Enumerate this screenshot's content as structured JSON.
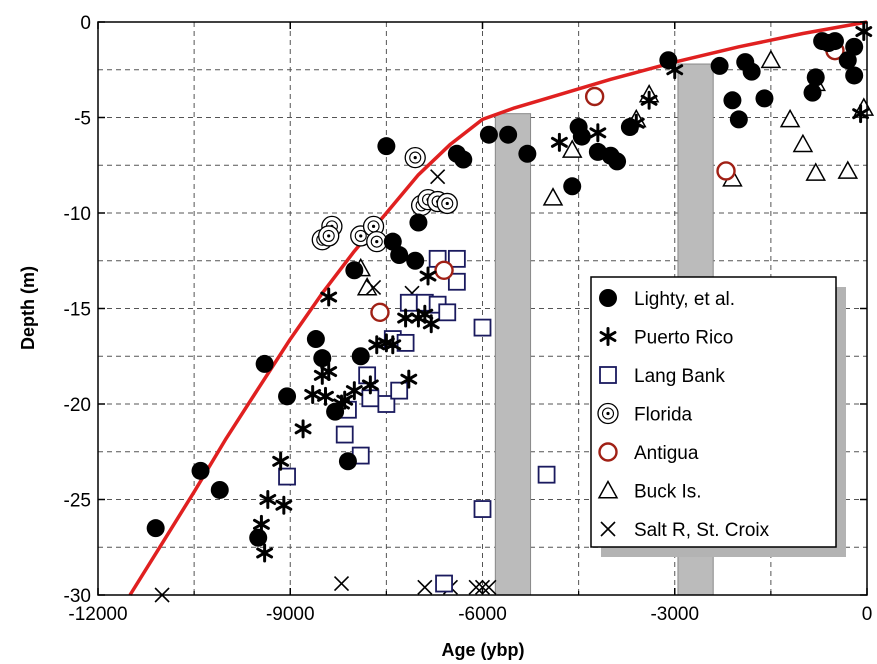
{
  "chart_data": {
    "type": "scatter",
    "title": "",
    "xlabel": "Age (ybp)",
    "ylabel": "Depth (m)",
    "xlim": [
      -12000,
      0
    ],
    "ylim": [
      -30,
      0
    ],
    "xticks": [
      -12000,
      -9000,
      -6000,
      -3000,
      0
    ],
    "yticks": [
      0,
      -5,
      -10,
      -15,
      -20,
      -25,
      -30
    ],
    "grid": true,
    "legend_position": "center-right",
    "colors": {
      "curve": "#e02020",
      "bar_fill": "#bbbbbb",
      "square_stroke": "#1a1a5e",
      "antigua_stroke": "#a02015"
    },
    "legend": [
      {
        "label": "Lighty, et al.",
        "marker": "filled-circle"
      },
      {
        "label": "Puerto Rico",
        "marker": "asterisk"
      },
      {
        "label": "Lang Bank",
        "marker": "open-square"
      },
      {
        "label": "Florida",
        "marker": "dotted-circle"
      },
      {
        "label": "Antigua",
        "marker": "open-circle"
      },
      {
        "label": "Buck Is.",
        "marker": "triangle"
      },
      {
        "label": "Salt R, St. Croix",
        "marker": "x"
      }
    ],
    "bands": [
      {
        "x0": -5800,
        "x1": -5250,
        "y0": -30,
        "y1": -4.8
      },
      {
        "x0": -2950,
        "x1": -2400,
        "y0": -30,
        "y1": -2.2
      }
    ],
    "curve": {
      "x": [
        -11500,
        -11000,
        -10500,
        -10000,
        -9500,
        -9000,
        -8500,
        -8000,
        -7500,
        -7000,
        -6500,
        -6000,
        -5500,
        -5000,
        -4000,
        -3000,
        -2000,
        -1000,
        0
      ],
      "y": [
        -30,
        -27.3,
        -24.6,
        -21.8,
        -19.2,
        -16.6,
        -14.2,
        -12.0,
        -10.0,
        -8.0,
        -6.4,
        -5.1,
        -4.5,
        -4.0,
        -3.0,
        -2.1,
        -1.3,
        -0.6,
        0
      ]
    },
    "series": [
      {
        "name": "Lighty, et al.",
        "marker": "filled-circle",
        "points": [
          [
            -11100,
            -26.5
          ],
          [
            -10400,
            -23.5
          ],
          [
            -10100,
            -24.5
          ],
          [
            -9500,
            -27.0
          ],
          [
            -9400,
            -17.9
          ],
          [
            -9050,
            -19.6
          ],
          [
            -8600,
            -16.6
          ],
          [
            -8500,
            -17.6
          ],
          [
            -8300,
            -20.4
          ],
          [
            -8100,
            -23.0
          ],
          [
            -8000,
            -13.0
          ],
          [
            -7900,
            -17.5
          ],
          [
            -7500,
            -6.5
          ],
          [
            -7400,
            -11.5
          ],
          [
            -7300,
            -12.2
          ],
          [
            -7050,
            -12.5
          ],
          [
            -7000,
            -10.5
          ],
          [
            -6400,
            -6.9
          ],
          [
            -6300,
            -7.2
          ],
          [
            -5900,
            -5.9
          ],
          [
            -5600,
            -5.9
          ],
          [
            -5300,
            -6.9
          ],
          [
            -4600,
            -8.6
          ],
          [
            -4500,
            -5.5
          ],
          [
            -4450,
            -6.0
          ],
          [
            -4200,
            -6.8
          ],
          [
            -4000,
            -7.0
          ],
          [
            -3900,
            -7.3
          ],
          [
            -3700,
            -5.5
          ],
          [
            -3100,
            -2.0
          ],
          [
            -2300,
            -2.3
          ],
          [
            -2100,
            -4.1
          ],
          [
            -2000,
            -5.1
          ],
          [
            -1900,
            -2.1
          ],
          [
            -1800,
            -2.6
          ],
          [
            -1600,
            -4.0
          ],
          [
            -850,
            -3.7
          ],
          [
            -800,
            -2.9
          ],
          [
            -700,
            -1.0
          ],
          [
            -600,
            -1.1
          ],
          [
            -500,
            -1.0
          ],
          [
            -300,
            -2.0
          ],
          [
            -200,
            -1.3
          ],
          [
            -200,
            -2.8
          ]
        ]
      },
      {
        "name": "Puerto Rico",
        "marker": "asterisk",
        "points": [
          [
            -9400,
            -27.8
          ],
          [
            -9450,
            -26.3
          ],
          [
            -9350,
            -25.0
          ],
          [
            -9100,
            -25.3
          ],
          [
            -9150,
            -23.0
          ],
          [
            -8800,
            -21.3
          ],
          [
            -8650,
            -19.5
          ],
          [
            -8500,
            -18.5
          ],
          [
            -8400,
            -18.3
          ],
          [
            -8450,
            -19.6
          ],
          [
            -8400,
            -14.4
          ],
          [
            -8200,
            -20.0
          ],
          [
            -8150,
            -19.8
          ],
          [
            -8000,
            -19.3
          ],
          [
            -7750,
            -19.0
          ],
          [
            -7650,
            -16.9
          ],
          [
            -7500,
            -16.8
          ],
          [
            -7400,
            -16.9
          ],
          [
            -7200,
            -15.5
          ],
          [
            -7000,
            -15.5
          ],
          [
            -6900,
            -15.3
          ],
          [
            -7150,
            -18.7
          ],
          [
            -6850,
            -13.3
          ],
          [
            -6800,
            -15.8
          ],
          [
            -4800,
            -6.3
          ],
          [
            -4200,
            -5.8
          ],
          [
            -3600,
            -5.3
          ],
          [
            -3400,
            -4.1
          ],
          [
            -3000,
            -2.5
          ],
          [
            -100,
            -4.8
          ],
          [
            -50,
            -0.5
          ]
        ]
      },
      {
        "name": "Lang Bank",
        "marker": "open-square",
        "points": [
          [
            -9050,
            -23.8
          ],
          [
            -8150,
            -21.6
          ],
          [
            -8100,
            -20.3
          ],
          [
            -7900,
            -22.7
          ],
          [
            -7800,
            -18.5
          ],
          [
            -7750,
            -19.7
          ],
          [
            -7500,
            -20.0
          ],
          [
            -7400,
            -16.6
          ],
          [
            -7300,
            -19.3
          ],
          [
            -7200,
            -16.8
          ],
          [
            -7150,
            -14.7
          ],
          [
            -6900,
            -14.7
          ],
          [
            -6700,
            -12.4
          ],
          [
            -6700,
            -14.8
          ],
          [
            -6400,
            -12.4
          ],
          [
            -6400,
            -13.6
          ],
          [
            -6550,
            -15.2
          ],
          [
            -6000,
            -16.0
          ],
          [
            -6000,
            -25.5
          ],
          [
            -5000,
            -23.7
          ],
          [
            -6600,
            -29.4
          ]
        ]
      },
      {
        "name": "Florida",
        "marker": "dotted-circle",
        "points": [
          [
            -8500,
            -11.4
          ],
          [
            -8350,
            -10.7
          ],
          [
            -8400,
            -11.2
          ],
          [
            -7900,
            -11.2
          ],
          [
            -7700,
            -10.7
          ],
          [
            -7650,
            -11.5
          ],
          [
            -7050,
            -7.1
          ],
          [
            -6950,
            -9.6
          ],
          [
            -6850,
            -9.3
          ],
          [
            -6700,
            -9.4
          ],
          [
            -6550,
            -9.5
          ]
        ]
      },
      {
        "name": "Antigua",
        "marker": "open-circle",
        "points": [
          [
            -7600,
            -15.2
          ],
          [
            -6600,
            -13.0
          ],
          [
            -4250,
            -3.9
          ],
          [
            -2200,
            -7.8
          ],
          [
            -500,
            -1.5
          ]
        ]
      },
      {
        "name": "Buck Is.",
        "marker": "triangle",
        "points": [
          [
            -7900,
            -12.9
          ],
          [
            -7800,
            -13.9
          ],
          [
            -4900,
            -9.2
          ],
          [
            -4600,
            -6.7
          ],
          [
            -3600,
            -5.1
          ],
          [
            -3400,
            -3.8
          ],
          [
            -2100,
            -8.2
          ],
          [
            -1500,
            -2.0
          ],
          [
            -1200,
            -5.1
          ],
          [
            -1000,
            -6.4
          ],
          [
            -800,
            -3.2
          ],
          [
            -800,
            -7.9
          ],
          [
            -300,
            -7.8
          ],
          [
            -50,
            -4.5
          ]
        ]
      },
      {
        "name": "Salt R, St. Croix",
        "marker": "x",
        "points": [
          [
            -11000,
            -30.0
          ],
          [
            -8200,
            -29.4
          ],
          [
            -7700,
            -13.9
          ],
          [
            -7100,
            -14.2
          ],
          [
            -6900,
            -29.6
          ],
          [
            -6700,
            -8.1
          ],
          [
            -6500,
            -29.6
          ],
          [
            -6100,
            -29.6
          ],
          [
            -6000,
            -29.6
          ],
          [
            -5900,
            -29.6
          ]
        ]
      }
    ]
  }
}
